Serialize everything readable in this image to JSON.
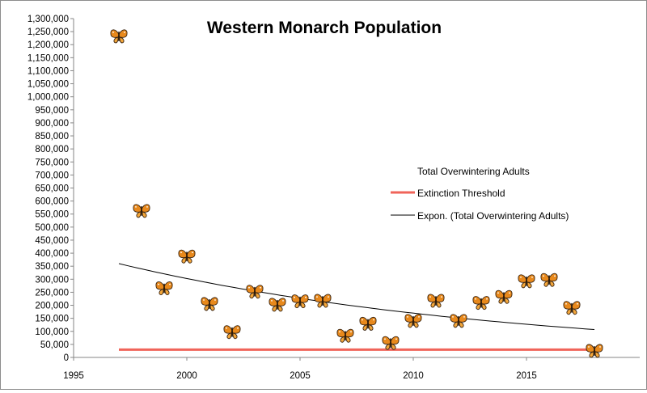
{
  "chart_data": {
    "type": "scatter",
    "title": "Western Monarch Population",
    "xlabel": "",
    "ylabel": "",
    "xlim": [
      1995,
      2020
    ],
    "ylim": [
      0,
      1300000
    ],
    "x_ticks": [
      1995,
      2000,
      2005,
      2010,
      2015
    ],
    "y_ticks": [
      0,
      50000,
      100000,
      150000,
      200000,
      250000,
      300000,
      350000,
      400000,
      450000,
      500000,
      550000,
      600000,
      650000,
      700000,
      750000,
      800000,
      850000,
      900000,
      950000,
      1000000,
      1050000,
      1100000,
      1150000,
      1200000,
      1250000,
      1300000
    ],
    "grid": false,
    "legend_position": "right",
    "series": [
      {
        "name": "Total Overwintering Adults",
        "marker": "butterfly",
        "points": [
          [
            1997,
            1235000
          ],
          [
            1998,
            565000
          ],
          [
            1999,
            268000
          ],
          [
            2000,
            390000
          ],
          [
            2001,
            208000
          ],
          [
            2002,
            100000
          ],
          [
            2003,
            255000
          ],
          [
            2004,
            205000
          ],
          [
            2005,
            218000
          ],
          [
            2006,
            220000
          ],
          [
            2007,
            86000
          ],
          [
            2008,
            132000
          ],
          [
            2009,
            58000
          ],
          [
            2010,
            143000
          ],
          [
            2011,
            220000
          ],
          [
            2012,
            143000
          ],
          [
            2013,
            212000
          ],
          [
            2014,
            235000
          ],
          [
            2015,
            295000
          ],
          [
            2016,
            300000
          ],
          [
            2017,
            193000
          ],
          [
            2018,
            28000
          ]
        ]
      },
      {
        "name": "Extinction Threshold",
        "type": "line",
        "color": "#f0645a",
        "x": [
          1997,
          2018
        ],
        "y": [
          30000,
          30000
        ]
      },
      {
        "name": "Expon. (Total Overwintering Adults)",
        "type": "trendline",
        "color": "#000000",
        "x": [
          1997,
          2018
        ],
        "y": [
          360000,
          107000
        ]
      }
    ]
  }
}
